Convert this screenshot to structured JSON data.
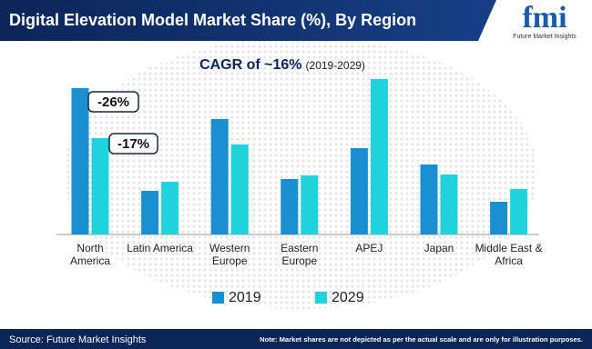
{
  "chart_data": {
    "type": "bar",
    "title": "Digital Elevation Model Market Share (%), By Region",
    "subtitle": "CAGR of ~16%",
    "subtitle_period": "(2019-2029)",
    "categories": [
      "North America",
      "Latin America",
      "Western Europe",
      "Eastern Europe",
      "APEJ",
      "Japan",
      "Middle East & Africa"
    ],
    "series": [
      {
        "name": "2019",
        "color": "#1a8fd0",
        "values": [
          161,
          48,
          127,
          61,
          95,
          77,
          36
        ]
      },
      {
        "name": "2029",
        "color": "#1fd3dc",
        "values": [
          106,
          58,
          99,
          65,
          171,
          66,
          50
        ]
      }
    ],
    "ylim": [
      0,
      180
    ],
    "annotations": [
      "-26%",
      "-17%"
    ]
  },
  "logo": {
    "mark": "fmi",
    "tagline": "Future Market Insights"
  },
  "footer": {
    "source": "Source: Future Market Insights",
    "note": "Note: Market shares are not depicted as per the actual scale and are only for illustration purposes."
  }
}
